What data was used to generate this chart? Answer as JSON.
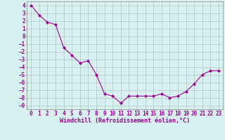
{
  "x": [
    0,
    1,
    2,
    3,
    4,
    5,
    6,
    7,
    8,
    9,
    10,
    11,
    12,
    13,
    14,
    15,
    16,
    17,
    18,
    19,
    20,
    21,
    22,
    23
  ],
  "y": [
    4.0,
    2.7,
    1.8,
    1.5,
    -1.5,
    -2.5,
    -3.5,
    -3.2,
    -5.0,
    -7.5,
    -7.8,
    -8.7,
    -7.8,
    -7.8,
    -7.8,
    -7.8,
    -7.5,
    -8.0,
    -7.8,
    -7.2,
    -6.2,
    -5.0,
    -4.5,
    -4.5
  ],
  "line_color": "#990099",
  "marker": "D",
  "marker_size": 2,
  "bg_color": "#d8f0f0",
  "grid_color": "#b0c8c8",
  "xlabel": "Windchill (Refroidissement éolien,°C)",
  "xlabel_color": "#990099",
  "tick_color": "#990099",
  "ylim": [
    -9.5,
    4.5
  ],
  "xlim": [
    -0.5,
    23.5
  ],
  "yticks": [
    4,
    3,
    2,
    1,
    0,
    -1,
    -2,
    -3,
    -4,
    -5,
    -6,
    -7,
    -8,
    -9
  ],
  "xticks": [
    0,
    1,
    2,
    3,
    4,
    5,
    6,
    7,
    8,
    9,
    10,
    11,
    12,
    13,
    14,
    15,
    16,
    17,
    18,
    19,
    20,
    21,
    22,
    23
  ],
  "font_size": 5.5,
  "label_fontsize": 6.0
}
